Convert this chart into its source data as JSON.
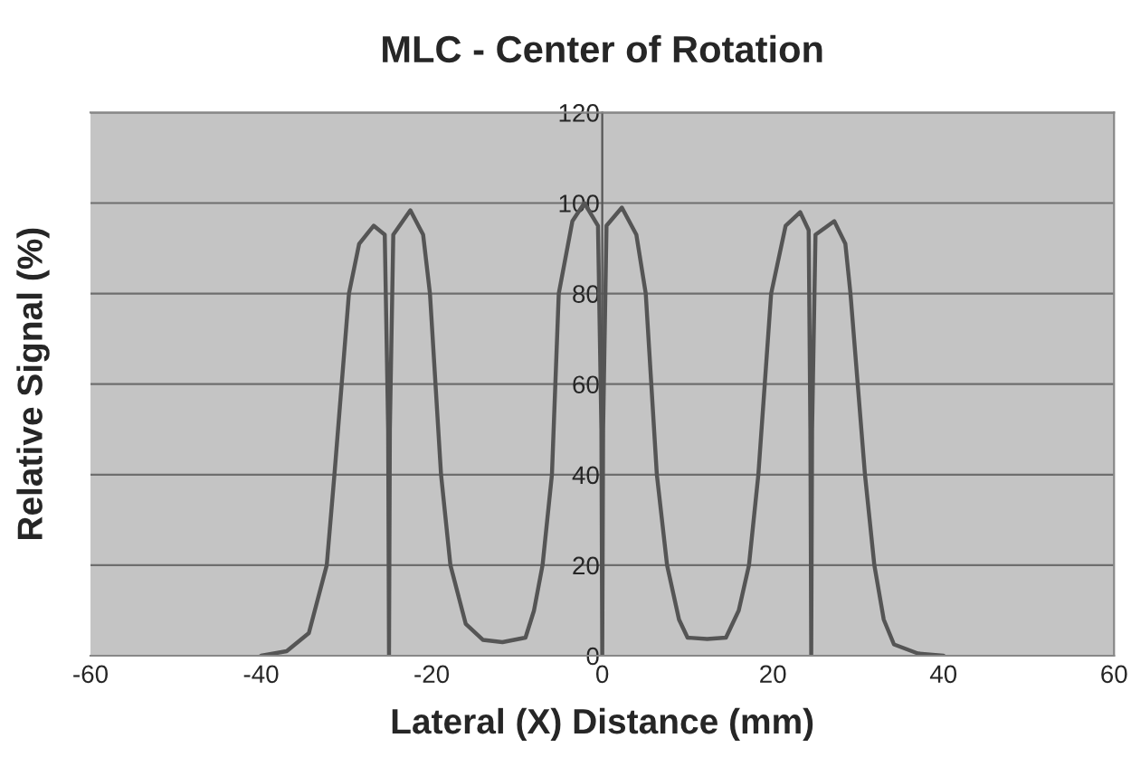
{
  "chart_data": {
    "type": "line",
    "title": "MLC - Center of Rotation",
    "xlabel": "Lateral (X) Distance (mm)",
    "ylabel": "Relative Signal (%)",
    "xlim": [
      -60,
      60
    ],
    "xticks": [
      -60,
      -40,
      -20,
      0,
      20,
      40,
      60
    ],
    "ylim": [
      0,
      120
    ],
    "yticks": [
      0,
      20,
      40,
      60,
      80,
      100,
      120
    ],
    "grid": "y",
    "marker": "none",
    "line_style": "solid",
    "series": [
      {
        "color": "#555555",
        "x": [
          -40,
          -37,
          -34.4,
          -32.3,
          -31.4,
          -29.7,
          -28.5,
          -26.8,
          -25.5,
          -25.1,
          -25.0,
          -24.9,
          -24.5,
          -22.5,
          -21,
          -20.2,
          -18.9,
          -17.8,
          -16,
          -14,
          -11.7,
          -9,
          -8,
          -7,
          -5.9,
          -5.1,
          -3.5,
          -2.1,
          -0.5,
          -0.1,
          0,
          0.1,
          0.5,
          2.3,
          4,
          5.1,
          6.4,
          7.6,
          9,
          10,
          12.3,
          14.5,
          16,
          17.2,
          18.3,
          19.8,
          21.5,
          23.2,
          24.2,
          24.4,
          24.5,
          24.6,
          25,
          27.2,
          28.5,
          29.1,
          30.8,
          31.9,
          33,
          34.2,
          37,
          40
        ],
        "values": [
          0,
          1,
          5,
          20,
          40,
          80,
          91,
          95,
          93,
          50,
          0,
          50,
          93,
          98.4,
          93,
          80,
          40,
          20,
          7,
          3.5,
          3,
          4,
          10,
          20,
          40,
          80,
          96,
          100,
          95,
          50,
          0,
          50,
          95,
          99,
          93,
          80,
          40,
          20,
          8,
          4,
          3.7,
          4,
          10,
          20,
          40,
          80,
          95,
          98,
          94,
          50,
          0,
          50,
          93,
          96,
          91,
          80,
          40,
          20,
          8,
          2.5,
          0.5,
          0
        ]
      }
    ]
  }
}
